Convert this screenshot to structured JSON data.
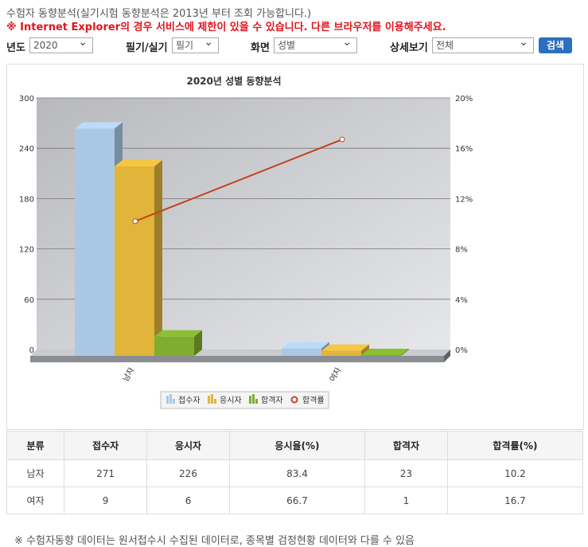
{
  "header": {
    "title": "수험자 동향분석(실기시험 동향분석은 2013년 부터 조회 가능합니다.)",
    "warning": "※ Internet Explorer의 경우 서비스에 제한이 있을 수 있습니다. 다른 브라우저를 이용해주세요."
  },
  "filters": {
    "year_label": "년도",
    "year_value": "2020",
    "type_label": "필기/실기",
    "type_value": "필기",
    "view_label": "화면",
    "view_value": "성별",
    "detail_label": "상세보기",
    "detail_value": "전체",
    "search_label": "검색"
  },
  "chart_data": {
    "type": "bar",
    "title": "2020년 성별 동향분석",
    "categories": [
      "남자",
      "여자"
    ],
    "ylim": [
      0,
      300
    ],
    "yticks": [
      "0",
      "60",
      "120",
      "180",
      "240",
      "300"
    ],
    "y2lim": [
      0,
      20
    ],
    "y2ticks": [
      "0%",
      "4%",
      "8%",
      "12%",
      "16%",
      "20%"
    ],
    "series": [
      {
        "name": "접수자",
        "values": [
          271,
          9
        ],
        "color": "#a9c8e3"
      },
      {
        "name": "응시자",
        "values": [
          226,
          6
        ],
        "color": "#e0b53a"
      },
      {
        "name": "합격자",
        "values": [
          23,
          1
        ],
        "color": "#7fae2e"
      },
      {
        "name": "합격률",
        "values": [
          10.2,
          16.7
        ],
        "color": "#c0441e",
        "type": "line",
        "axis": "right"
      }
    ],
    "legend": "bottom",
    "grid": true
  },
  "table": {
    "headers": [
      "분류",
      "접수자",
      "응시자",
      "응시율(%)",
      "합격자",
      "합격률(%)"
    ],
    "rows": [
      [
        "남자",
        "271",
        "226",
        "83.4",
        "23",
        "10.2"
      ],
      [
        "여자",
        "9",
        "6",
        "66.7",
        "1",
        "16.7"
      ]
    ]
  },
  "note": "※ 수험자동향 데이터는 원서접수시 수집된 데이터로, 종목별 검정현황 데이터와 다를 수 있음"
}
